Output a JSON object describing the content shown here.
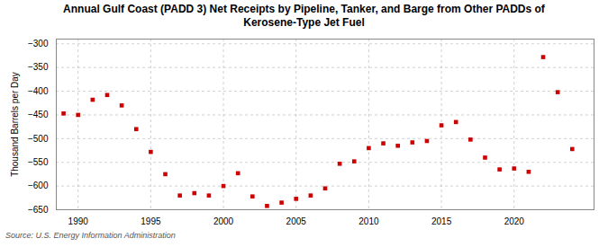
{
  "chart_data": {
    "type": "scatter",
    "title": "Annual Gulf Coast (PADD 3) Net Receipts by Pipeline, Tanker, and Barge from Other PADDs of\nKerosene-Type Jet Fuel",
    "ylabel": "Thousand Barrels per Day",
    "source": "Source: U.S. Energy Information Administration",
    "x": [
      1989,
      1990,
      1991,
      1992,
      1993,
      1994,
      1995,
      1996,
      1997,
      1998,
      1999,
      2000,
      2001,
      2002,
      2003,
      2004,
      2005,
      2006,
      2007,
      2008,
      2009,
      2010,
      2011,
      2012,
      2013,
      2014,
      2015,
      2016,
      2017,
      2018,
      2019,
      2020,
      2021,
      2022,
      2023,
      2024
    ],
    "values": [
      -447,
      -450,
      -418,
      -408,
      -430,
      -480,
      -528,
      -575,
      -620,
      -615,
      -620,
      -600,
      -573,
      -622,
      -642,
      -635,
      -627,
      -620,
      -605,
      -553,
      -548,
      -520,
      -510,
      -515,
      -508,
      -505,
      -472,
      -465,
      -502,
      -540,
      -565,
      -563,
      -570,
      -328,
      -402,
      -522
    ],
    "color": "#cc0000",
    "marker": "square",
    "xlim": [
      1988.5,
      2025.5
    ],
    "ylim": [
      -650,
      -290
    ],
    "xticks": [
      1990,
      1995,
      2000,
      2005,
      2010,
      2015,
      2020
    ],
    "yticks": [
      -300,
      -350,
      -400,
      -450,
      -500,
      -550,
      -600,
      -650
    ],
    "grid": true
  }
}
